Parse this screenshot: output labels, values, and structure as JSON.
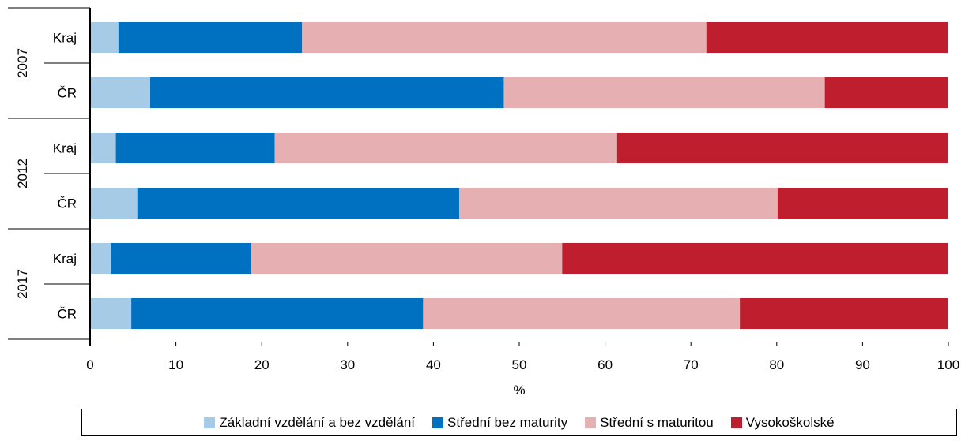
{
  "chart_data": {
    "type": "bar",
    "orientation": "horizontal",
    "stacked": true,
    "groups": [
      {
        "label": "2007",
        "rows": [
          {
            "label": "Kraj",
            "values": [
              3.3,
              21.4,
              47.1,
              28.2
            ]
          },
          {
            "label": "ČR",
            "values": [
              7.0,
              41.2,
              37.4,
              14.4
            ]
          }
        ]
      },
      {
        "label": "2012",
        "rows": [
          {
            "label": "Kraj",
            "values": [
              3.0,
              18.5,
              39.9,
              38.6
            ]
          },
          {
            "label": "ČR",
            "values": [
              5.5,
              37.5,
              37.1,
              19.9
            ]
          }
        ]
      },
      {
        "label": "2017",
        "rows": [
          {
            "label": "Kraj",
            "values": [
              2.4,
              16.4,
              36.2,
              45.0
            ]
          },
          {
            "label": "ČR",
            "values": [
              4.8,
              34.0,
              36.9,
              24.3
            ]
          }
        ]
      }
    ],
    "series": [
      {
        "name": "Základní vzdělání a bez vzdělání",
        "color": "#a6cbe6"
      },
      {
        "name": "Střední bez maturity",
        "color": "#0070c0"
      },
      {
        "name": "Střední s maturitou",
        "color": "#e6afb2"
      },
      {
        "name": "Vysokoškolské",
        "color": "#be1e2d"
      }
    ],
    "xlabel": "%",
    "xlim": [
      0,
      100
    ],
    "xticks": [
      "0",
      "10",
      "20",
      "30",
      "40",
      "50",
      "60",
      "70",
      "80",
      "90",
      "100"
    ],
    "legend_position": "bottom",
    "grid": false
  }
}
